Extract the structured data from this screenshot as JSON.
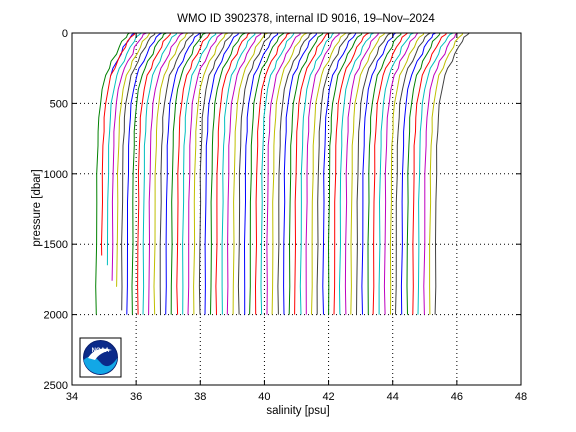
{
  "chart_data": {
    "type": "line",
    "title": "WMO ID 3902378, internal ID 9016, 19–Nov–2024",
    "xlabel": "salinity [psu]",
    "ylabel": "pressure [dbar]",
    "xlim": [
      34,
      48
    ],
    "ylim": [
      0,
      2500
    ],
    "y_reversed": true,
    "grid": true,
    "xticks": [
      "34",
      "36",
      "38",
      "40",
      "42",
      "44",
      "46",
      "48"
    ],
    "yticks": [
      "0",
      "500",
      "1000",
      "1500",
      "2000",
      "2500"
    ],
    "profile_template": {
      "note_units": "pressure dbar vs salinity offset psu",
      "pressure": [
        0,
        10,
        30,
        60,
        100,
        150,
        200,
        250,
        300,
        400,
        500,
        600,
        700,
        800,
        1000,
        1200,
        1500,
        1800,
        2000
      ],
      "salinity_offset": [
        1.05,
        1.0,
        0.92,
        0.82,
        0.72,
        0.62,
        0.5,
        0.4,
        0.3,
        0.2,
        0.13,
        0.09,
        0.07,
        0.05,
        0.03,
        0.02,
        0.01,
        0.0,
        0.0
      ]
    },
    "series": [
      {
        "color": "#0000ff",
        "base": 34.9,
        "max_pressure": 300
      },
      {
        "color": "#008000",
        "base": 34.75,
        "max_pressure": 2020
      },
      {
        "color": "#ff0000",
        "base": 34.92,
        "max_pressure": 1580
      },
      {
        "color": "#00bfbf",
        "base": 35.1,
        "max_pressure": 1650
      },
      {
        "color": "#bf00bf",
        "base": 35.25,
        "max_pressure": 1760
      },
      {
        "color": "#bfbf00",
        "base": 35.4,
        "max_pressure": 1800
      },
      {
        "color": "#404040",
        "base": 35.55,
        "max_pressure": 1970
      },
      {
        "color": "#0000ff",
        "base": 35.72,
        "max_pressure": 2020
      },
      {
        "color": "#008000",
        "base": 35.88,
        "max_pressure": 2030
      },
      {
        "color": "#ff0000",
        "base": 36.05,
        "max_pressure": 2040
      },
      {
        "color": "#00bfbf",
        "base": 36.22,
        "max_pressure": 2030
      },
      {
        "color": "#bf00bf",
        "base": 36.4,
        "max_pressure": 2030
      },
      {
        "color": "#bfbf00",
        "base": 36.57,
        "max_pressure": 2040
      },
      {
        "color": "#404040",
        "base": 36.75,
        "max_pressure": 2030
      },
      {
        "color": "#0000ff",
        "base": 36.93,
        "max_pressure": 2030
      },
      {
        "color": "#008000",
        "base": 37.1,
        "max_pressure": 2030
      },
      {
        "color": "#ff0000",
        "base": 37.28,
        "max_pressure": 2040
      },
      {
        "color": "#00bfbf",
        "base": 37.45,
        "max_pressure": 2030
      },
      {
        "color": "#bf00bf",
        "base": 37.63,
        "max_pressure": 2030
      },
      {
        "color": "#bfbf00",
        "base": 37.8,
        "max_pressure": 2040
      },
      {
        "color": "#404040",
        "base": 37.98,
        "max_pressure": 2030
      },
      {
        "color": "#0000ff",
        "base": 38.15,
        "max_pressure": 2030
      },
      {
        "color": "#008000",
        "base": 38.33,
        "max_pressure": 2040
      },
      {
        "color": "#ff0000",
        "base": 38.5,
        "max_pressure": 2030
      },
      {
        "color": "#00bfbf",
        "base": 38.68,
        "max_pressure": 2030
      },
      {
        "color": "#bf00bf",
        "base": 38.85,
        "max_pressure": 2040
      },
      {
        "color": "#bfbf00",
        "base": 39.03,
        "max_pressure": 2030
      },
      {
        "color": "#404040",
        "base": 39.2,
        "max_pressure": 2030
      },
      {
        "color": "#0000ff",
        "base": 39.38,
        "max_pressure": 2040
      },
      {
        "color": "#008000",
        "base": 39.55,
        "max_pressure": 2030
      },
      {
        "color": "#ff0000",
        "base": 39.73,
        "max_pressure": 2030
      },
      {
        "color": "#00bfbf",
        "base": 39.9,
        "max_pressure": 2040
      },
      {
        "color": "#bf00bf",
        "base": 40.08,
        "max_pressure": 2030
      },
      {
        "color": "#bfbf00",
        "base": 40.25,
        "max_pressure": 2030
      },
      {
        "color": "#404040",
        "base": 40.43,
        "max_pressure": 2040
      },
      {
        "color": "#0000ff",
        "base": 40.6,
        "max_pressure": 2030
      },
      {
        "color": "#008000",
        "base": 40.78,
        "max_pressure": 2030
      },
      {
        "color": "#ff0000",
        "base": 40.95,
        "max_pressure": 2040
      },
      {
        "color": "#00bfbf",
        "base": 41.13,
        "max_pressure": 2030
      },
      {
        "color": "#bf00bf",
        "base": 41.3,
        "max_pressure": 2030
      },
      {
        "color": "#bfbf00",
        "base": 41.48,
        "max_pressure": 2040
      },
      {
        "color": "#404040",
        "base": 41.65,
        "max_pressure": 2030
      },
      {
        "color": "#0000ff",
        "base": 41.83,
        "max_pressure": 2030
      },
      {
        "color": "#008000",
        "base": 42.0,
        "max_pressure": 2040
      },
      {
        "color": "#ff0000",
        "base": 42.18,
        "max_pressure": 2030
      },
      {
        "color": "#00bfbf",
        "base": 42.35,
        "max_pressure": 2030
      },
      {
        "color": "#bf00bf",
        "base": 42.53,
        "max_pressure": 2040
      },
      {
        "color": "#bfbf00",
        "base": 42.7,
        "max_pressure": 2030
      },
      {
        "color": "#404040",
        "base": 42.88,
        "max_pressure": 2030
      },
      {
        "color": "#0000ff",
        "base": 43.05,
        "max_pressure": 2040
      },
      {
        "color": "#008000",
        "base": 43.23,
        "max_pressure": 2030
      },
      {
        "color": "#ff0000",
        "base": 43.4,
        "max_pressure": 2030
      },
      {
        "color": "#00bfbf",
        "base": 43.58,
        "max_pressure": 2040
      },
      {
        "color": "#bf00bf",
        "base": 43.75,
        "max_pressure": 2030
      },
      {
        "color": "#bfbf00",
        "base": 43.93,
        "max_pressure": 2030
      },
      {
        "color": "#404040",
        "base": 44.1,
        "max_pressure": 2040
      },
      {
        "color": "#0000ff",
        "base": 44.28,
        "max_pressure": 2030
      },
      {
        "color": "#008000",
        "base": 44.45,
        "max_pressure": 2030
      },
      {
        "color": "#ff0000",
        "base": 44.63,
        "max_pressure": 2040
      },
      {
        "color": "#00bfbf",
        "base": 44.8,
        "max_pressure": 2030
      },
      {
        "color": "#bf00bf",
        "base": 44.98,
        "max_pressure": 2030
      },
      {
        "color": "#bfbf00",
        "base": 45.15,
        "max_pressure": 2040
      },
      {
        "color": "#404040",
        "base": 45.33,
        "max_pressure": 2030
      }
    ]
  },
  "logo": {
    "text": "NOAA",
    "colors": {
      "ring": "#0a1f6e",
      "sky": "#0b2a8a",
      "sea": "#12a7e6",
      "bird": "#ffffff"
    }
  }
}
